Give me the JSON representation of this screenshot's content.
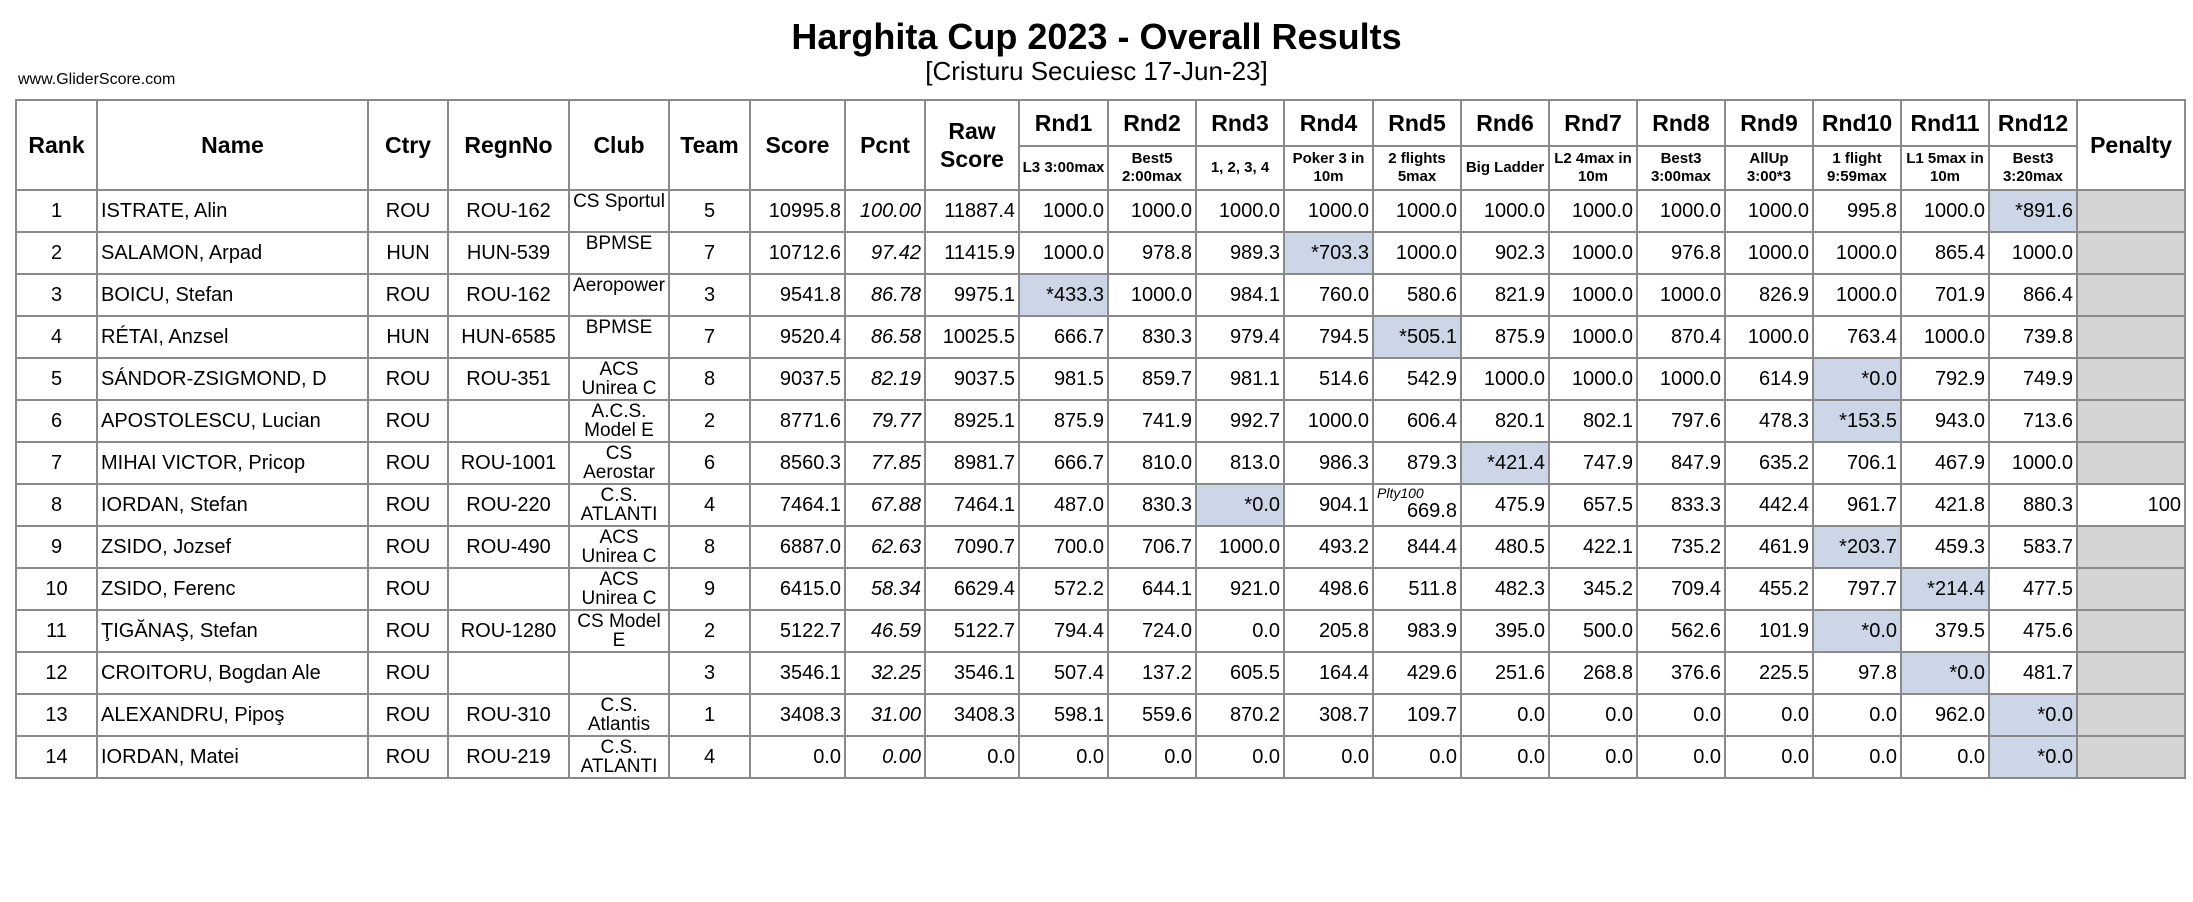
{
  "title": "Harghita Cup 2023 - Overall Results",
  "subtitle": "[Cristuru Secuiesc 17-Jun-23]",
  "site": "www.GliderScore.com",
  "colors": {
    "discarded_cell": "#ccd6e6",
    "penalty_column": "#d4d4d4",
    "grid": "#8a8a8a"
  },
  "headers": {
    "rank": "Rank",
    "name": "Name",
    "ctry": "Ctry",
    "regn": "RegnNo",
    "club": "Club",
    "team": "Team",
    "score": "Score",
    "pcnt": "Pcnt",
    "raw": "Raw Score",
    "penalty": "Penalty",
    "rounds": [
      {
        "label": "Rnd1",
        "task": "L3 3:00max"
      },
      {
        "label": "Rnd2",
        "task": "Best5 2:00max"
      },
      {
        "label": "Rnd3",
        "task": "1, 2, 3, 4"
      },
      {
        "label": "Rnd4",
        "task": "Poker 3 in 10m"
      },
      {
        "label": "Rnd5",
        "task": "2 flights 5max"
      },
      {
        "label": "Rnd6",
        "task": "Big Ladder"
      },
      {
        "label": "Rnd7",
        "task": "L2 4max in 10m"
      },
      {
        "label": "Rnd8",
        "task": "Best3 3:00max"
      },
      {
        "label": "Rnd9",
        "task": "AllUp 3:00*3"
      },
      {
        "label": "Rnd10",
        "task": "1 flight 9:59max"
      },
      {
        "label": "Rnd11",
        "task": "L1 5max in 10m"
      },
      {
        "label": "Rnd12",
        "task": "Best3 3:20max"
      }
    ]
  },
  "rows": [
    {
      "rank": "1",
      "name": "ISTRATE, Alin",
      "ctry": "ROU",
      "regn": "ROU-162",
      "club": "CS Sportul",
      "team": "5",
      "score": "10995.8",
      "pcnt": "100.00",
      "raw": "11887.4",
      "r": [
        "1000.0",
        "1000.0",
        "1000.0",
        "1000.0",
        "1000.0",
        "1000.0",
        "1000.0",
        "1000.0",
        "1000.0",
        "995.8",
        "1000.0",
        "*891.6"
      ],
      "drop": [
        11
      ],
      "penalty": ""
    },
    {
      "rank": "2",
      "name": "SALAMON, Arpad",
      "ctry": "HUN",
      "regn": "HUN-539",
      "club": "BPMSE",
      "team": "7",
      "score": "10712.6",
      "pcnt": "97.42",
      "raw": "11415.9",
      "r": [
        "1000.0",
        "978.8",
        "989.3",
        "*703.3",
        "1000.0",
        "902.3",
        "1000.0",
        "976.8",
        "1000.0",
        "1000.0",
        "865.4",
        "1000.0"
      ],
      "drop": [
        3
      ],
      "penalty": ""
    },
    {
      "rank": "3",
      "name": "BOICU, Stefan",
      "ctry": "ROU",
      "regn": "ROU-162",
      "club": "Aeropower",
      "team": "3",
      "score": "9541.8",
      "pcnt": "86.78",
      "raw": "9975.1",
      "r": [
        "*433.3",
        "1000.0",
        "984.1",
        "760.0",
        "580.6",
        "821.9",
        "1000.0",
        "1000.0",
        "826.9",
        "1000.0",
        "701.9",
        "866.4"
      ],
      "drop": [
        0
      ],
      "penalty": ""
    },
    {
      "rank": "4",
      "name": "RÉTAI, Anzsel",
      "ctry": "HUN",
      "regn": "HUN-6585",
      "club": "BPMSE",
      "team": "7",
      "score": "9520.4",
      "pcnt": "86.58",
      "raw": "10025.5",
      "r": [
        "666.7",
        "830.3",
        "979.4",
        "794.5",
        "*505.1",
        "875.9",
        "1000.0",
        "870.4",
        "1000.0",
        "763.4",
        "1000.0",
        "739.8"
      ],
      "drop": [
        4
      ],
      "penalty": ""
    },
    {
      "rank": "5",
      "name": "SÁNDOR-ZSIGMOND, D",
      "ctry": "ROU",
      "regn": "ROU-351",
      "club": "ACS Unirea C",
      "team": "8",
      "score": "9037.5",
      "pcnt": "82.19",
      "raw": "9037.5",
      "r": [
        "981.5",
        "859.7",
        "981.1",
        "514.6",
        "542.9",
        "1000.0",
        "1000.0",
        "1000.0",
        "614.9",
        "*0.0",
        "792.9",
        "749.9"
      ],
      "drop": [
        9
      ],
      "penalty": ""
    },
    {
      "rank": "6",
      "name": "APOSTOLESCU, Lucian",
      "ctry": "ROU",
      "regn": "",
      "club": "A.C.S. Model E",
      "team": "2",
      "score": "8771.6",
      "pcnt": "79.77",
      "raw": "8925.1",
      "r": [
        "875.9",
        "741.9",
        "992.7",
        "1000.0",
        "606.4",
        "820.1",
        "802.1",
        "797.6",
        "478.3",
        "*153.5",
        "943.0",
        "713.6"
      ],
      "drop": [
        9
      ],
      "penalty": ""
    },
    {
      "rank": "7",
      "name": "MIHAI VICTOR, Pricop",
      "ctry": "ROU",
      "regn": "ROU-1001",
      "club": "CS Aerostar",
      "team": "6",
      "score": "8560.3",
      "pcnt": "77.85",
      "raw": "8981.7",
      "r": [
        "666.7",
        "810.0",
        "813.0",
        "986.3",
        "879.3",
        "*421.4",
        "747.9",
        "847.9",
        "635.2",
        "706.1",
        "467.9",
        "1000.0"
      ],
      "drop": [
        5
      ],
      "penalty": ""
    },
    {
      "rank": "8",
      "name": "IORDAN, Stefan",
      "ctry": "ROU",
      "regn": "ROU-220",
      "club": "C.S. ATLANTI",
      "team": "4",
      "score": "7464.1",
      "pcnt": "67.88",
      "raw": "7464.1",
      "r": [
        "487.0",
        "830.3",
        "*0.0",
        "904.1",
        "669.8",
        "475.9",
        "657.5",
        "833.3",
        "442.4",
        "961.7",
        "421.8",
        "880.3"
      ],
      "drop": [
        2
      ],
      "penalty": "100",
      "note_round": 4,
      "note": "Plty100"
    },
    {
      "rank": "9",
      "name": "ZSIDO, Jozsef",
      "ctry": "ROU",
      "regn": "ROU-490",
      "club": "ACS Unirea C",
      "team": "8",
      "score": "6887.0",
      "pcnt": "62.63",
      "raw": "7090.7",
      "r": [
        "700.0",
        "706.7",
        "1000.0",
        "493.2",
        "844.4",
        "480.5",
        "422.1",
        "735.2",
        "461.9",
        "*203.7",
        "459.3",
        "583.7"
      ],
      "drop": [
        9
      ],
      "penalty": ""
    },
    {
      "rank": "10",
      "name": "ZSIDO, Ferenc",
      "ctry": "ROU",
      "regn": "",
      "club": "ACS Unirea C",
      "team": "9",
      "score": "6415.0",
      "pcnt": "58.34",
      "raw": "6629.4",
      "r": [
        "572.2",
        "644.1",
        "921.0",
        "498.6",
        "511.8",
        "482.3",
        "345.2",
        "709.4",
        "455.2",
        "797.7",
        "*214.4",
        "477.5"
      ],
      "drop": [
        10
      ],
      "penalty": ""
    },
    {
      "rank": "11",
      "name": "ŢIGĂNAŞ, Stefan",
      "ctry": "ROU",
      "regn": "ROU-1280",
      "club": "CS Model E",
      "team": "2",
      "score": "5122.7",
      "pcnt": "46.59",
      "raw": "5122.7",
      "r": [
        "794.4",
        "724.0",
        "0.0",
        "205.8",
        "983.9",
        "395.0",
        "500.0",
        "562.6",
        "101.9",
        "*0.0",
        "379.5",
        "475.6"
      ],
      "drop": [
        9
      ],
      "penalty": ""
    },
    {
      "rank": "12",
      "name": "CROITORU, Bogdan Ale",
      "ctry": "ROU",
      "regn": "",
      "club": "",
      "team": "3",
      "score": "3546.1",
      "pcnt": "32.25",
      "raw": "3546.1",
      "r": [
        "507.4",
        "137.2",
        "605.5",
        "164.4",
        "429.6",
        "251.6",
        "268.8",
        "376.6",
        "225.5",
        "97.8",
        "*0.0",
        "481.7"
      ],
      "drop": [
        10
      ],
      "penalty": ""
    },
    {
      "rank": "13",
      "name": "ALEXANDRU, Pipoş",
      "ctry": "ROU",
      "regn": "ROU-310",
      "club": "C.S. Atlantis",
      "team": "1",
      "score": "3408.3",
      "pcnt": "31.00",
      "raw": "3408.3",
      "r": [
        "598.1",
        "559.6",
        "870.2",
        "308.7",
        "109.7",
        "0.0",
        "0.0",
        "0.0",
        "0.0",
        "0.0",
        "962.0",
        "*0.0"
      ],
      "drop": [
        11
      ],
      "penalty": ""
    },
    {
      "rank": "14",
      "name": "IORDAN, Matei",
      "ctry": "ROU",
      "regn": "ROU-219",
      "club": "C.S. ATLANTI",
      "team": "4",
      "score": "0.0",
      "pcnt": "0.00",
      "raw": "0.0",
      "r": [
        "0.0",
        "0.0",
        "0.0",
        "0.0",
        "0.0",
        "0.0",
        "0.0",
        "0.0",
        "0.0",
        "0.0",
        "0.0",
        "*0.0"
      ],
      "drop": [
        11
      ],
      "penalty": ""
    }
  ]
}
